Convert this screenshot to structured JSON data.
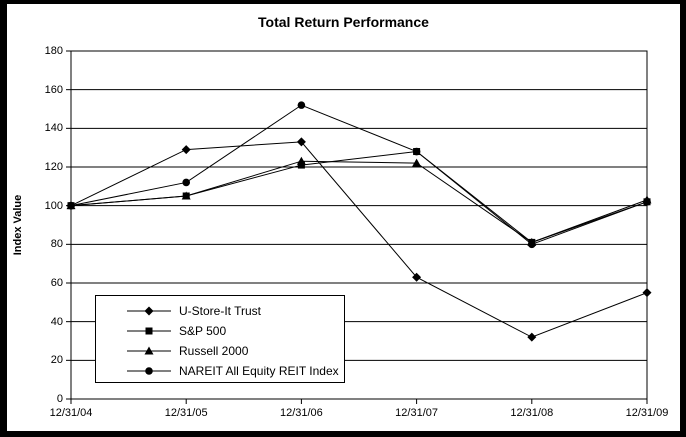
{
  "chart_data": {
    "type": "line",
    "title": "Total Return Performance",
    "ylabel": "Index Value",
    "xlabel": "",
    "ylim": [
      0,
      180
    ],
    "yticks": [
      0,
      20,
      40,
      60,
      80,
      100,
      120,
      140,
      160,
      180
    ],
    "grid": true,
    "legend_position": "inside-bottom-left",
    "line_color": "#000000",
    "background_color": "#ffffff",
    "categories": [
      "12/31/04",
      "12/31/05",
      "12/31/06",
      "12/31/07",
      "12/31/08",
      "12/31/09"
    ],
    "series": [
      {
        "name": "U-Store-It Trust",
        "marker": "diamond",
        "values": [
          100,
          129,
          133,
          63,
          32,
          55
        ]
      },
      {
        "name": "S&P 500",
        "marker": "square",
        "values": [
          100,
          105,
          121,
          128,
          81,
          102
        ]
      },
      {
        "name": "Russell 2000",
        "marker": "triangle",
        "values": [
          100,
          105,
          123,
          122,
          81,
          103
        ]
      },
      {
        "name": "NAREIT All Equity REIT Index",
        "marker": "circle",
        "values": [
          100,
          112,
          152,
          128,
          80,
          102
        ]
      }
    ]
  }
}
